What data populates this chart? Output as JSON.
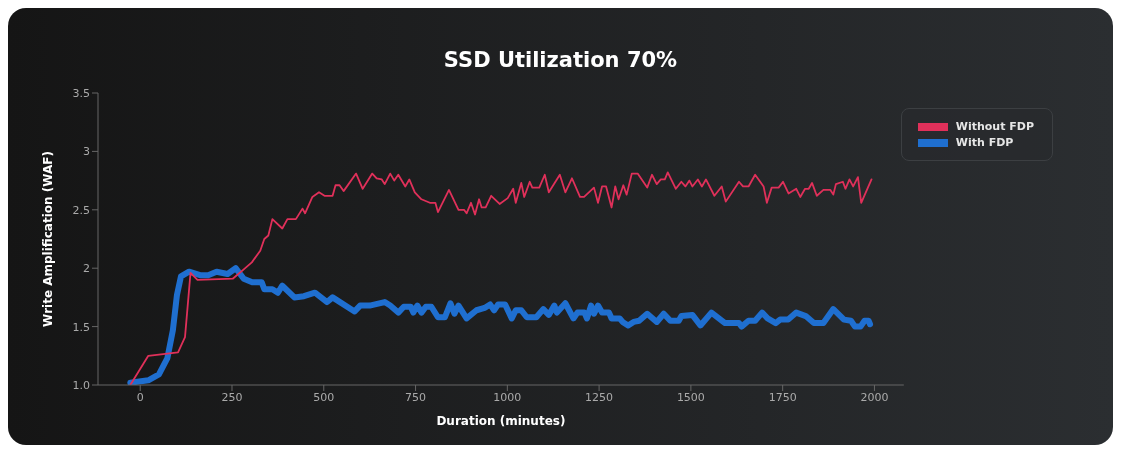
{
  "chart_data": {
    "type": "line",
    "title": "SSD Utilization 70%",
    "xlabel": "Duration (minutes)",
    "ylabel": "Write Amplification (WAF)",
    "xlim": [
      -115,
      2080
    ],
    "xticks": [
      0,
      250,
      500,
      750,
      1000,
      1250,
      1500,
      1750,
      2000
    ],
    "ylim": [
      1,
      3.5
    ],
    "yticks": [
      {
        "value": 1,
        "label": "1.0"
      },
      1.5,
      2,
      2.5,
      3,
      3.5
    ],
    "grid": false,
    "legend": "top right",
    "marker": "none",
    "line_style": "solid",
    "series": [
      {
        "name": "Without FDP",
        "color": "#e0305a",
        "x": [
          -27,
          22,
          103,
          122,
          137,
          156,
          252,
          282,
          304,
          327,
          338,
          349,
          360,
          387,
          401,
          424,
          442,
          449,
          469,
          487,
          502,
          524,
          532,
          543,
          554,
          588,
          606,
          632,
          644,
          658,
          666,
          681,
          692,
          703,
          722,
          733,
          748,
          766,
          789,
          804,
          811,
          841,
          867,
          882,
          889,
          901,
          912,
          923,
          930,
          941,
          956,
          979,
          1001,
          1016,
          1023,
          1038,
          1046,
          1061,
          1068,
          1087,
          1102,
          1113,
          1143,
          1158,
          1176,
          1198,
          1209,
          1236,
          1247,
          1258,
          1269,
          1284,
          1294,
          1303,
          1316,
          1325,
          1339,
          1355,
          1381,
          1394,
          1407,
          1418,
          1429,
          1437,
          1459,
          1474,
          1485,
          1496,
          1504,
          1519,
          1530,
          1541,
          1564,
          1584,
          1595,
          1631,
          1642,
          1657,
          1675,
          1698,
          1707,
          1720,
          1739,
          1751,
          1766,
          1787,
          1798,
          1811,
          1821,
          1830,
          1843,
          1861,
          1880,
          1888,
          1895,
          1914,
          1921,
          1932,
          1942,
          1955,
          1964,
          1992
        ],
        "values": [
          1.0,
          1.25,
          1.28,
          1.41,
          1.96,
          1.9,
          1.91,
          1.99,
          2.05,
          2.15,
          2.25,
          2.28,
          2.42,
          2.34,
          2.42,
          2.42,
          2.51,
          2.47,
          2.61,
          2.65,
          2.62,
          2.62,
          2.71,
          2.71,
          2.66,
          2.81,
          2.68,
          2.81,
          2.77,
          2.76,
          2.72,
          2.81,
          2.75,
          2.8,
          2.7,
          2.76,
          2.65,
          2.59,
          2.56,
          2.56,
          2.48,
          2.67,
          2.5,
          2.5,
          2.47,
          2.56,
          2.46,
          2.59,
          2.52,
          2.52,
          2.62,
          2.55,
          2.6,
          2.68,
          2.56,
          2.73,
          2.61,
          2.74,
          2.69,
          2.69,
          2.8,
          2.65,
          2.8,
          2.65,
          2.77,
          2.61,
          2.61,
          2.69,
          2.56,
          2.7,
          2.7,
          2.52,
          2.7,
          2.59,
          2.71,
          2.63,
          2.81,
          2.81,
          2.69,
          2.8,
          2.72,
          2.76,
          2.76,
          2.82,
          2.68,
          2.74,
          2.7,
          2.75,
          2.7,
          2.76,
          2.7,
          2.76,
          2.62,
          2.7,
          2.57,
          2.74,
          2.7,
          2.7,
          2.8,
          2.7,
          2.56,
          2.69,
          2.69,
          2.74,
          2.64,
          2.68,
          2.61,
          2.68,
          2.68,
          2.73,
          2.62,
          2.67,
          2.67,
          2.63,
          2.72,
          2.74,
          2.68,
          2.76,
          2.7,
          2.78,
          2.56,
          2.76
        ]
      },
      {
        "name": "With FDP",
        "color": "#1f6fd0",
        "x": [
          -27,
          22,
          51,
          74,
          89,
          100,
          111,
          133,
          163,
          185,
          208,
          238,
          260,
          282,
          305,
          331,
          338,
          360,
          375,
          387,
          420,
          446,
          476,
          509,
          524,
          584,
          599,
          625,
          666,
          681,
          703,
          718,
          737,
          744,
          755,
          766,
          778,
          793,
          811,
          830,
          845,
          856,
          867,
          889,
          916,
          938,
          953,
          964,
          975,
          994,
          1012,
          1023,
          1038,
          1053,
          1079,
          1098,
          1113,
          1128,
          1135,
          1158,
          1180,
          1191,
          1210,
          1217,
          1228,
          1236,
          1247,
          1258,
          1277,
          1284,
          1306,
          1314,
          1329,
          1344,
          1359,
          1381,
          1407,
          1426,
          1444,
          1467,
          1474,
          1504,
          1526,
          1556,
          1593,
          1631,
          1638,
          1657,
          1675,
          1694,
          1709,
          1731,
          1743,
          1765,
          1787,
          1813,
          1835,
          1861,
          1888,
          1917,
          1936,
          1947,
          1962,
          1973,
          1984,
          1988
        ],
        "values": [
          1.02,
          1.04,
          1.09,
          1.23,
          1.47,
          1.77,
          1.93,
          1.97,
          1.94,
          1.94,
          1.97,
          1.95,
          2.0,
          1.91,
          1.88,
          1.88,
          1.82,
          1.82,
          1.79,
          1.85,
          1.75,
          1.76,
          1.79,
          1.71,
          1.75,
          1.63,
          1.68,
          1.68,
          1.71,
          1.68,
          1.62,
          1.67,
          1.67,
          1.62,
          1.68,
          1.62,
          1.67,
          1.67,
          1.58,
          1.58,
          1.7,
          1.61,
          1.68,
          1.57,
          1.64,
          1.66,
          1.69,
          1.64,
          1.69,
          1.69,
          1.57,
          1.64,
          1.64,
          1.58,
          1.58,
          1.65,
          1.6,
          1.68,
          1.62,
          1.7,
          1.57,
          1.62,
          1.62,
          1.57,
          1.68,
          1.61,
          1.68,
          1.62,
          1.62,
          1.57,
          1.57,
          1.54,
          1.51,
          1.54,
          1.55,
          1.61,
          1.54,
          1.61,
          1.55,
          1.55,
          1.59,
          1.6,
          1.51,
          1.62,
          1.53,
          1.53,
          1.5,
          1.55,
          1.55,
          1.62,
          1.57,
          1.53,
          1.56,
          1.56,
          1.62,
          1.59,
          1.53,
          1.53,
          1.65,
          1.56,
          1.55,
          1.5,
          1.5,
          1.55,
          1.55,
          1.52
        ]
      }
    ]
  }
}
